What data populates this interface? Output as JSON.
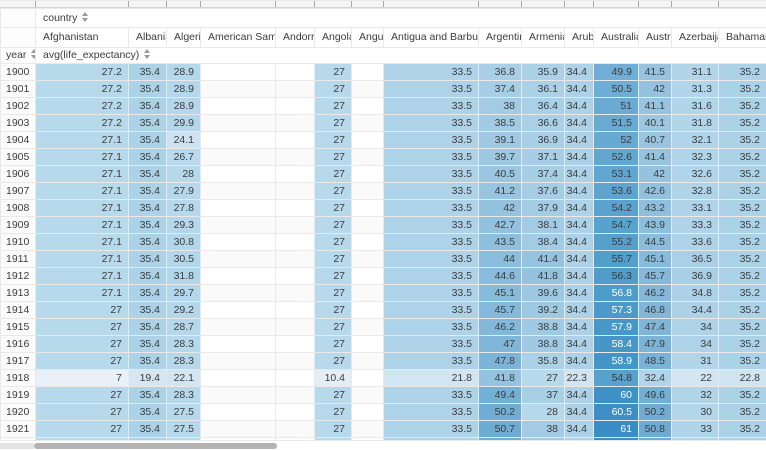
{
  "ui": {
    "column_dimension_label": "country",
    "row_dimension_label": "year",
    "metric_label": "avg(life_expectancy)"
  },
  "heatmap": {
    "empty_color": "#ffffff",
    "text_color": "#3c3c3c",
    "white_text_color": "#ffffff",
    "white_text_min": 56.5,
    "stops": [
      [
        7,
        "#e9f1f8"
      ],
      [
        24,
        "#cfe3f1"
      ],
      [
        27,
        "#b7d9ec"
      ],
      [
        36,
        "#abd1e7"
      ],
      [
        47,
        "#80b6d9"
      ],
      [
        56.4,
        "#4f9dcb"
      ],
      [
        61,
        "#3a8cc4"
      ]
    ]
  },
  "chart_data": {
    "type": "table",
    "col_dimension": "country",
    "row_dimension": "year",
    "metric": "avg(life_expectancy)",
    "columns": [
      "Afghanistan",
      "Albania",
      "Algeria",
      "American Samoa",
      "Andorra",
      "Angola",
      "Anguilla",
      "Antigua and Barbuda",
      "Argentina",
      "Armenia",
      "Aruba",
      "Australia",
      "Austria",
      "Azerbaijan",
      "Bahamas"
    ],
    "rows": [
      {
        "year": "1900",
        "values": [
          27.2,
          35.4,
          28.9,
          null,
          null,
          27,
          null,
          33.5,
          36.8,
          35.9,
          34.4,
          49.9,
          41.5,
          31.1,
          35.2
        ]
      },
      {
        "year": "1901",
        "values": [
          27.2,
          35.4,
          28.9,
          null,
          null,
          27,
          null,
          33.5,
          37.4,
          36.1,
          34.4,
          50.5,
          42,
          31.3,
          35.2
        ]
      },
      {
        "year": "1902",
        "values": [
          27.2,
          35.4,
          28.9,
          null,
          null,
          27,
          null,
          33.5,
          38,
          36.4,
          34.4,
          51,
          41.1,
          31.6,
          35.2
        ]
      },
      {
        "year": "1903",
        "values": [
          27.2,
          35.4,
          29.9,
          null,
          null,
          27,
          null,
          33.5,
          38.5,
          36.6,
          34.4,
          51.5,
          40.1,
          31.8,
          35.2
        ]
      },
      {
        "year": "1904",
        "values": [
          27.1,
          35.4,
          24.1,
          null,
          null,
          27,
          null,
          33.5,
          39.1,
          36.9,
          34.4,
          52,
          40.7,
          32.1,
          35.2
        ]
      },
      {
        "year": "1905",
        "values": [
          27.1,
          35.4,
          26.7,
          null,
          null,
          27,
          null,
          33.5,
          39.7,
          37.1,
          34.4,
          52.6,
          41.4,
          32.3,
          35.2
        ]
      },
      {
        "year": "1906",
        "values": [
          27.1,
          35.4,
          28,
          null,
          null,
          27,
          null,
          33.5,
          40.5,
          37.4,
          34.4,
          53.1,
          42,
          32.6,
          35.2
        ]
      },
      {
        "year": "1907",
        "values": [
          27.1,
          35.4,
          27.9,
          null,
          null,
          27,
          null,
          33.5,
          41.2,
          37.6,
          34.4,
          53.6,
          42.6,
          32.8,
          35.2
        ]
      },
      {
        "year": "1908",
        "values": [
          27.1,
          35.4,
          27.8,
          null,
          null,
          27,
          null,
          33.5,
          42,
          37.9,
          34.4,
          54.2,
          43.2,
          33.1,
          35.2
        ]
      },
      {
        "year": "1909",
        "values": [
          27.1,
          35.4,
          29.3,
          null,
          null,
          27,
          null,
          33.5,
          42.7,
          38.1,
          34.4,
          54.7,
          43.9,
          33.3,
          35.2
        ]
      },
      {
        "year": "1910",
        "values": [
          27.1,
          35.4,
          30.8,
          null,
          null,
          27,
          null,
          33.5,
          43.5,
          38.4,
          34.4,
          55.2,
          44.5,
          33.6,
          35.2
        ]
      },
      {
        "year": "1911",
        "values": [
          27.1,
          35.4,
          30.5,
          null,
          null,
          27,
          null,
          33.5,
          44,
          41.4,
          34.4,
          55.7,
          45.1,
          36.5,
          35.2
        ]
      },
      {
        "year": "1912",
        "values": [
          27.1,
          35.4,
          31.8,
          null,
          null,
          27,
          null,
          33.5,
          44.6,
          41.8,
          34.4,
          56.3,
          45.7,
          36.9,
          35.2
        ]
      },
      {
        "year": "1913",
        "values": [
          27.1,
          35.4,
          29.7,
          null,
          null,
          27,
          null,
          33.5,
          45.1,
          39.6,
          34.4,
          56.8,
          46.2,
          34.8,
          35.2
        ]
      },
      {
        "year": "1914",
        "values": [
          27,
          35.4,
          29.2,
          null,
          null,
          27,
          null,
          33.5,
          45.7,
          39.2,
          34.4,
          57.3,
          46.8,
          34.4,
          35.2
        ]
      },
      {
        "year": "1915",
        "values": [
          27,
          35.4,
          28.7,
          null,
          null,
          27,
          null,
          33.5,
          46.2,
          38.8,
          34.4,
          57.9,
          47.4,
          34,
          35.2
        ]
      },
      {
        "year": "1916",
        "values": [
          27,
          35.4,
          28.3,
          null,
          null,
          27,
          null,
          33.5,
          47,
          38.8,
          34.4,
          58.4,
          47.9,
          34,
          35.2
        ]
      },
      {
        "year": "1917",
        "values": [
          27,
          35.4,
          28.3,
          null,
          null,
          27,
          null,
          33.5,
          47.8,
          35.8,
          34.4,
          58.9,
          48.5,
          31,
          35.2
        ]
      },
      {
        "year": "1918",
        "values": [
          7,
          19.4,
          22.1,
          null,
          null,
          10.4,
          null,
          21.8,
          41.8,
          27,
          22.3,
          54.8,
          32.4,
          22,
          22.8
        ]
      },
      {
        "year": "1919",
        "values": [
          27,
          35.4,
          28.3,
          null,
          null,
          27,
          null,
          33.5,
          49.4,
          37,
          34.4,
          60,
          49.6,
          32,
          35.2
        ]
      },
      {
        "year": "1920",
        "values": [
          27,
          35.4,
          27.5,
          null,
          null,
          27,
          null,
          33.5,
          50.2,
          28,
          34.4,
          60.5,
          50.2,
          30,
          35.2
        ]
      },
      {
        "year": "1921",
        "values": [
          27,
          35.4,
          27.5,
          null,
          null,
          27,
          null,
          33.5,
          50.7,
          38,
          34.4,
          61,
          50.8,
          33,
          35.2
        ]
      }
    ]
  }
}
